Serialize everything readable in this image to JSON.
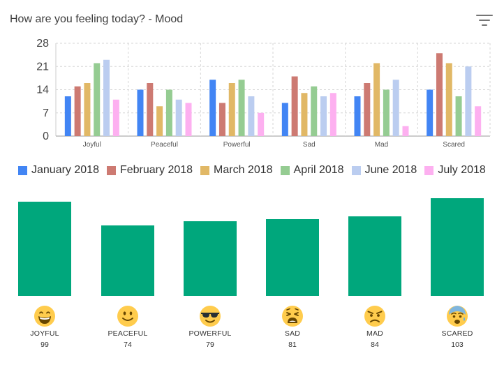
{
  "header": {
    "title": "How are you feeling today? - Mood",
    "filter_icon": "filter-list-icon"
  },
  "chart_data": {
    "type": "bar",
    "categories": [
      "Joyful",
      "Peaceful",
      "Powerful",
      "Sad",
      "Mad",
      "Scared"
    ],
    "series": [
      {
        "name": "January 2018",
        "color": "#4285f4",
        "values": [
          12,
          14,
          17,
          10,
          12,
          14
        ]
      },
      {
        "name": "February 2018",
        "color": "#cd7a72",
        "values": [
          15,
          16,
          10,
          18,
          16,
          25
        ]
      },
      {
        "name": "March 2018",
        "color": "#e1b866",
        "values": [
          16,
          9,
          16,
          13,
          22,
          22
        ]
      },
      {
        "name": "April 2018",
        "color": "#95cc92",
        "values": [
          22,
          14,
          17,
          15,
          14,
          12
        ]
      },
      {
        "name": "June 2018",
        "color": "#bbcdf0",
        "values": [
          23,
          11,
          12,
          12,
          17,
          21
        ]
      },
      {
        "name": "July 2018",
        "color": "#fdb0f0",
        "values": [
          11,
          10,
          7,
          13,
          3,
          9
        ]
      }
    ],
    "yticks": [
      0,
      7,
      14,
      21,
      28
    ],
    "ylim": [
      0,
      28
    ],
    "grid": true,
    "legend_position": "bottom"
  },
  "moods": [
    {
      "label": "JOYFUL",
      "count": "99",
      "value": 99,
      "icon": "grinning-face-icon"
    },
    {
      "label": "PEACEFUL",
      "count": "74",
      "value": 74,
      "icon": "smiling-face-icon"
    },
    {
      "label": "POWERFUL",
      "count": "79",
      "value": 79,
      "icon": "sunglasses-face-icon"
    },
    {
      "label": "SAD",
      "count": "81",
      "value": 81,
      "icon": "weary-face-icon"
    },
    {
      "label": "MAD",
      "count": "84",
      "value": 84,
      "icon": "angry-face-icon"
    },
    {
      "label": "SCARED",
      "count": "103",
      "value": 103,
      "icon": "anxious-face-icon"
    }
  ],
  "mood_bar_color": "#00a77c"
}
